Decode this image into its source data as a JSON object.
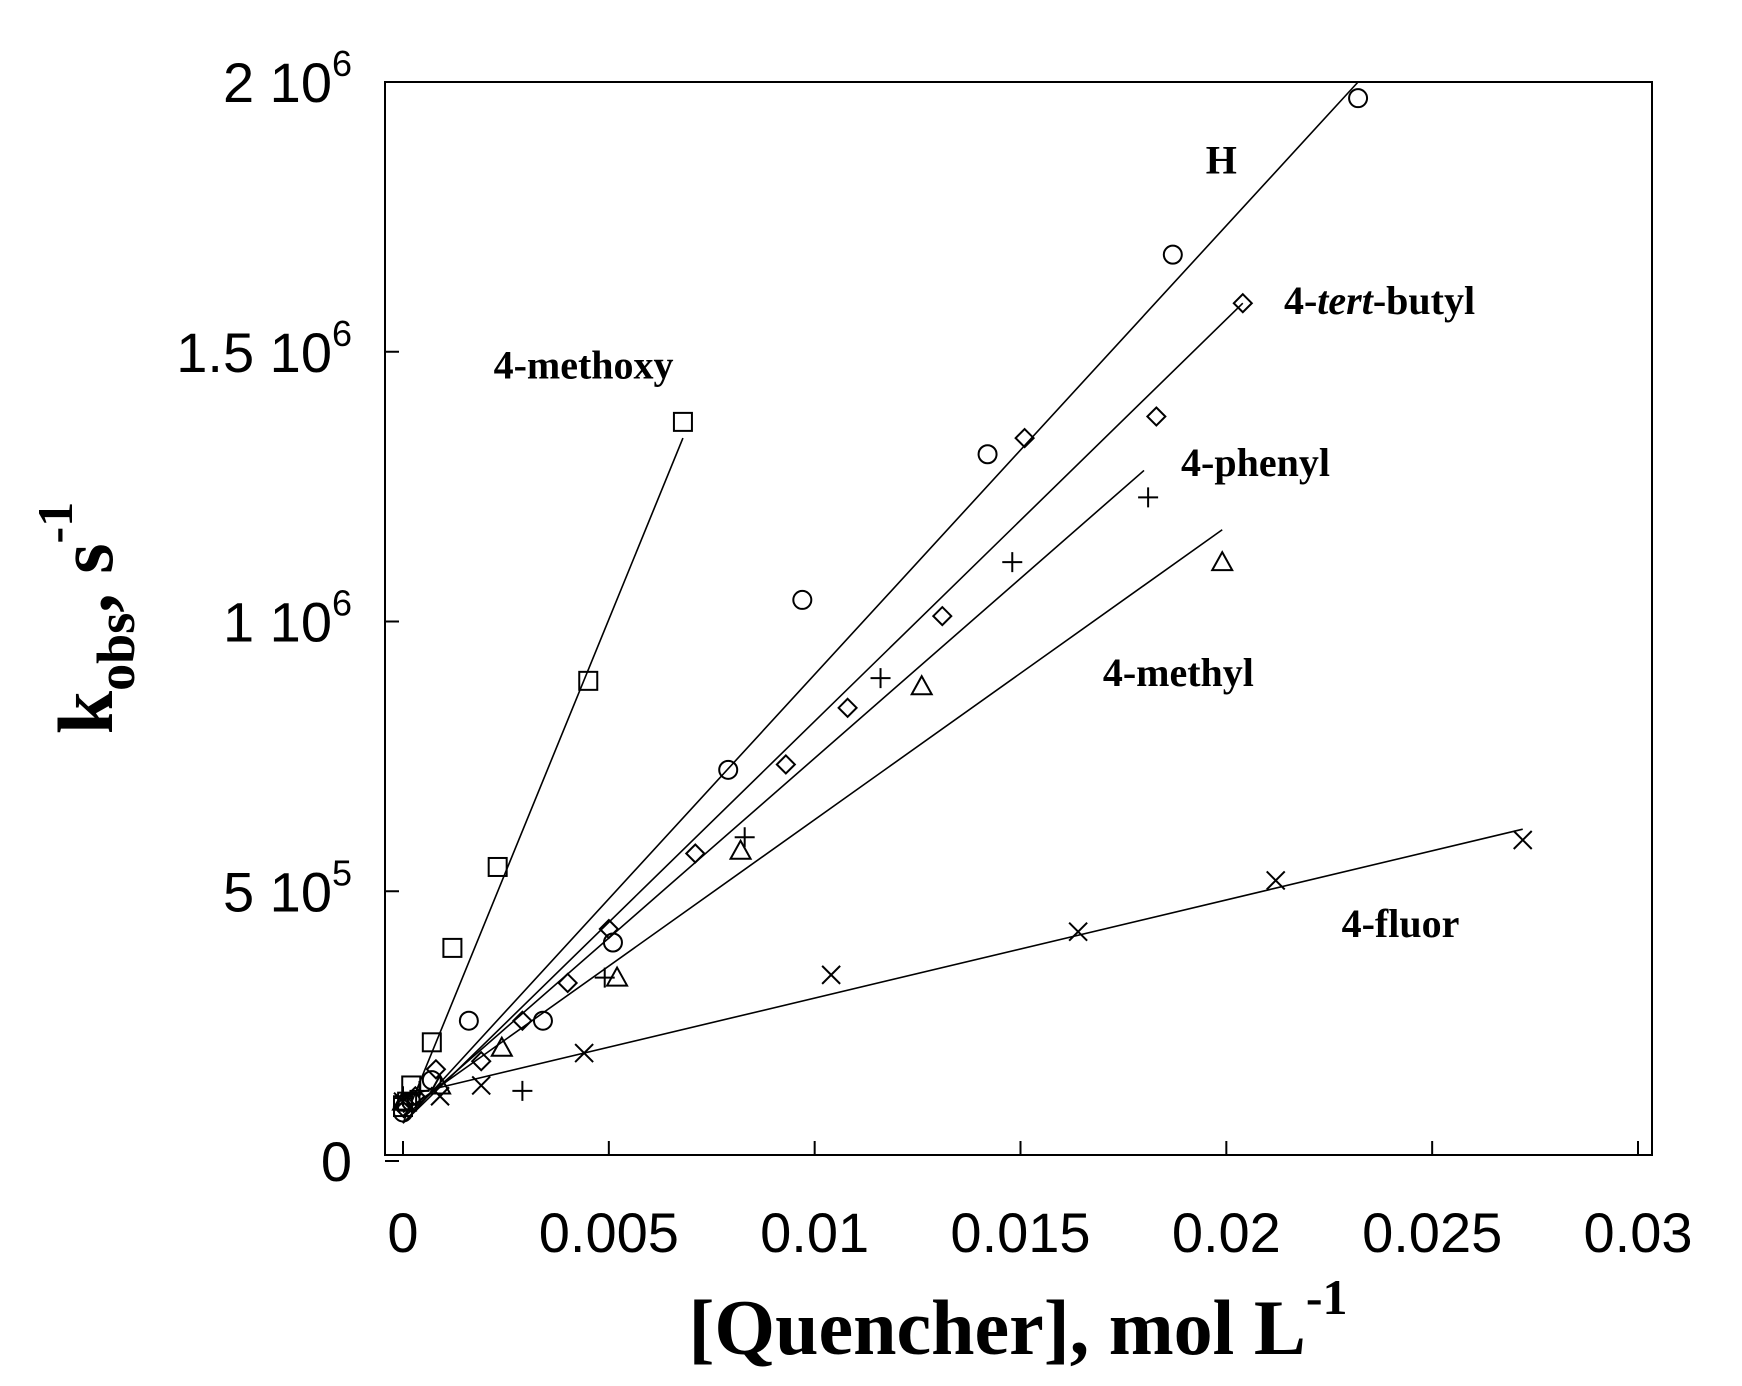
{
  "chart_data": {
    "type": "scatter",
    "xlabel": "[Quencher], mol L",
    "xlabel_sup": "-1",
    "ylabel_main": "k",
    "ylabel_sub": "obs",
    "ylabel_rest": ", s",
    "ylabel_sup": "-1",
    "xlim": [
      0,
      0.03
    ],
    "ylim": [
      0,
      2000000
    ],
    "grid": false,
    "legend": "none",
    "x_ticks": [
      {
        "value": 0,
        "label": "0"
      },
      {
        "value": 0.005,
        "label": "0.005"
      },
      {
        "value": 0.01,
        "label": "0.01"
      },
      {
        "value": 0.015,
        "label": "0.015"
      },
      {
        "value": 0.02,
        "label": "0.02"
      },
      {
        "value": 0.025,
        "label": "0.025"
      },
      {
        "value": 0.03,
        "label": "0.03"
      }
    ],
    "y_ticks": [
      {
        "value": 0,
        "mantissa": "0",
        "exp": ""
      },
      {
        "value": 500000,
        "mantissa": "5 10",
        "exp": "5"
      },
      {
        "value": 1000000,
        "mantissa": "1 10",
        "exp": "6"
      },
      {
        "value": 1500000,
        "mantissa": "1.5 10",
        "exp": "6"
      },
      {
        "value": 2000000,
        "mantissa": "2 10",
        "exp": "6"
      }
    ],
    "series": [
      {
        "name": "4-methoxy",
        "label_parts": [
          {
            "text": "4-methoxy",
            "italic": false
          }
        ],
        "label_at": [
          0.0022,
          1450000
        ],
        "marker": "square",
        "points": [
          [
            0,
            100000
          ],
          [
            0.0001,
            110000
          ],
          [
            0.0002,
            140000
          ],
          [
            0.0007,
            220000
          ],
          [
            0.0012,
            395000
          ],
          [
            0.0023,
            545000
          ],
          [
            0.0045,
            890000
          ],
          [
            0.0068,
            1370000
          ]
        ],
        "line": [
          [
            0,
            70000
          ],
          [
            0.0068,
            1340000
          ]
        ]
      },
      {
        "name": "H",
        "label_parts": [
          {
            "text": "H",
            "italic": false
          }
        ],
        "label_at": [
          0.0195,
          1830000
        ],
        "marker": "circle",
        "points": [
          [
            0,
            90000
          ],
          [
            0.0002,
            110000
          ],
          [
            0.0007,
            150000
          ],
          [
            0.0016,
            260000
          ],
          [
            0.0034,
            260000
          ],
          [
            0.0051,
            405000
          ],
          [
            0.0079,
            725000
          ],
          [
            0.0097,
            1040000
          ],
          [
            0.0142,
            1310000
          ],
          [
            0.0187,
            1680000
          ],
          [
            0.0232,
            1970000
          ]
        ],
        "line": [
          [
            0,
            70000
          ],
          [
            0.0232,
            2000000
          ]
        ]
      },
      {
        "name": "4-tert-butyl",
        "label_parts": [
          {
            "text": "4-",
            "italic": false
          },
          {
            "text": "tert",
            "italic": true
          },
          {
            "text": "-butyl",
            "italic": false
          }
        ],
        "label_at": [
          0.0214,
          1570000
        ],
        "marker": "diamond",
        "points": [
          [
            0,
            100000
          ],
          [
            0.0003,
            120000
          ],
          [
            0.0008,
            170000
          ],
          [
            0.0019,
            185000
          ],
          [
            0.0029,
            260000
          ],
          [
            0.004,
            330000
          ],
          [
            0.005,
            430000
          ],
          [
            0.0071,
            570000
          ],
          [
            0.0093,
            735000
          ],
          [
            0.0108,
            840000
          ],
          [
            0.0131,
            1010000
          ],
          [
            0.0151,
            1340000
          ],
          [
            0.0183,
            1380000
          ],
          [
            0.0204,
            1590000
          ]
        ],
        "line": [
          [
            0,
            70000
          ],
          [
            0.0204,
            1590000
          ]
        ]
      },
      {
        "name": "4-phenyl",
        "label_parts": [
          {
            "text": "4-phenyl",
            "italic": false
          }
        ],
        "label_at": [
          0.0189,
          1270000
        ],
        "marker": "plus",
        "points": [
          [
            0,
            120000
          ],
          [
            0.0004,
            130000
          ],
          [
            0.0029,
            130000
          ],
          [
            0.0049,
            340000
          ],
          [
            0.0083,
            600000
          ],
          [
            0.0116,
            895000
          ],
          [
            0.0148,
            1110000
          ],
          [
            0.0181,
            1230000
          ]
        ],
        "line": [
          [
            0,
            80000
          ],
          [
            0.018,
            1280000
          ]
        ]
      },
      {
        "name": "4-methyl",
        "label_parts": [
          {
            "text": "4-methyl",
            "italic": false
          }
        ],
        "label_at": [
          0.017,
          880000
        ],
        "marker": "triangle",
        "points": [
          [
            0,
            110000
          ],
          [
            0.0009,
            140000
          ],
          [
            0.0024,
            210000
          ],
          [
            0.0052,
            340000
          ],
          [
            0.0082,
            575000
          ],
          [
            0.0126,
            880000
          ],
          [
            0.0199,
            1110000
          ]
        ],
        "line": [
          [
            0,
            90000
          ],
          [
            0.0199,
            1170000
          ]
        ]
      },
      {
        "name": "4-fluor",
        "label_parts": [
          {
            "text": "4-fluor",
            "italic": false
          }
        ],
        "label_at": [
          0.0228,
          415000
        ],
        "marker": "x",
        "points": [
          [
            0,
            110000
          ],
          [
            0.0009,
            120000
          ],
          [
            0.0019,
            140000
          ],
          [
            0.0044,
            200000
          ],
          [
            0.0104,
            345000
          ],
          [
            0.0164,
            425000
          ],
          [
            0.0212,
            520000
          ],
          [
            0.0272,
            595000
          ]
        ],
        "line": [
          [
            0,
            120000
          ],
          [
            0.0272,
            615000
          ]
        ]
      }
    ]
  }
}
